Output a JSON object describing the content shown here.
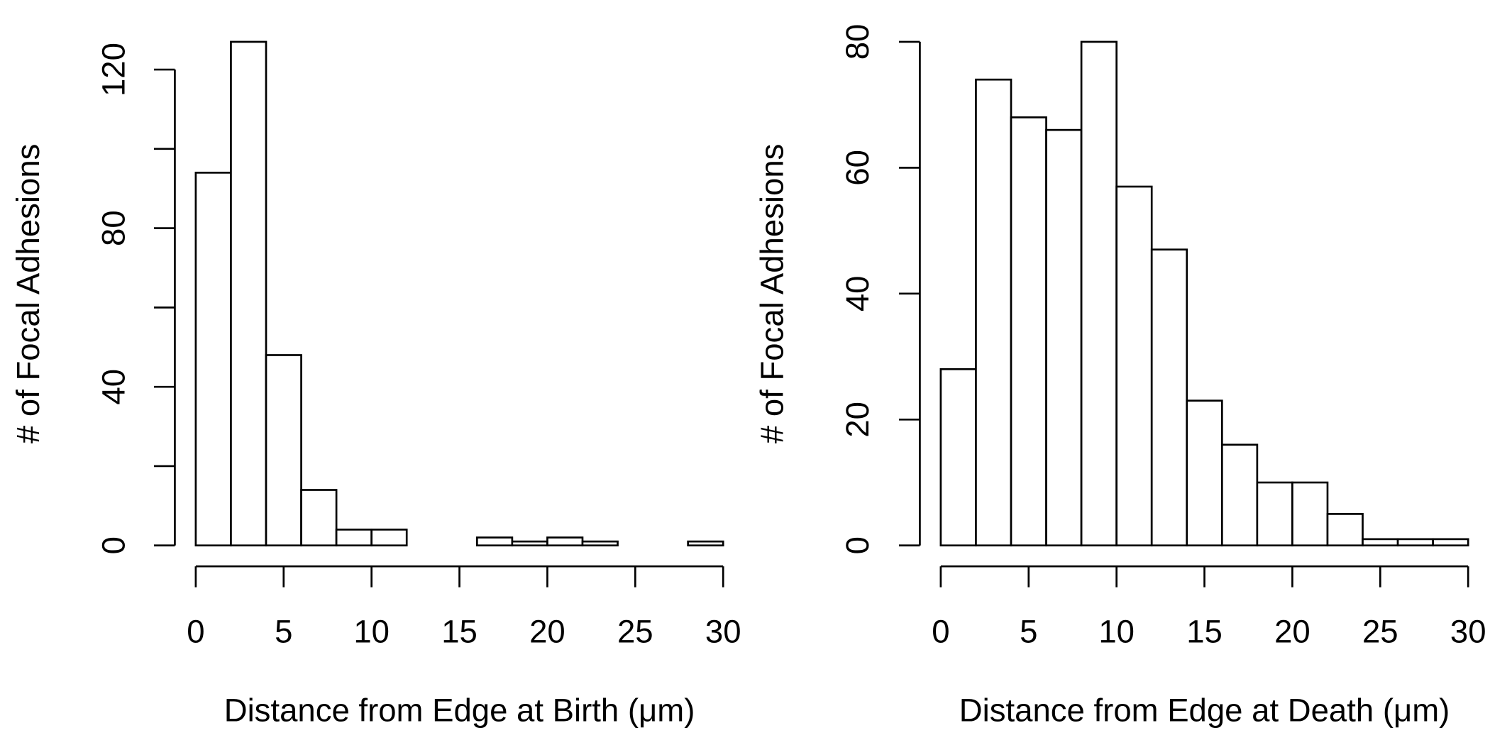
{
  "chart_data": [
    {
      "type": "histogram",
      "xlabel": "Distance from Edge at Birth (μm)",
      "ylabel": "# of Focal Adhesions",
      "bins": [
        0,
        2,
        4,
        6,
        8,
        10,
        12,
        14,
        16,
        18,
        20,
        22,
        24,
        26,
        28,
        30
      ],
      "values": [
        94,
        127,
        48,
        14,
        4,
        4,
        0,
        0,
        2,
        1,
        2,
        1,
        0,
        0,
        1
      ],
      "color": "#ffffff",
      "xlim": [
        0,
        30
      ],
      "xticks": [
        0,
        5,
        10,
        15,
        20,
        25,
        30
      ],
      "ylim": [
        0,
        127
      ],
      "yticks": [
        0,
        20,
        40,
        60,
        80,
        100,
        120
      ]
    },
    {
      "type": "histogram",
      "xlabel": "Distance from Edge at Death (μm)",
      "ylabel": "# of Focal Adhesions",
      "bins": [
        0,
        2,
        4,
        6,
        8,
        10,
        12,
        14,
        16,
        18,
        20,
        22,
        24,
        26,
        28,
        30
      ],
      "values": [
        28,
        74,
        68,
        66,
        80,
        57,
        47,
        23,
        16,
        10,
        10,
        5,
        1,
        1,
        1
      ],
      "color": "#ffffff",
      "xlim": [
        0,
        30
      ],
      "xticks": [
        0,
        5,
        10,
        15,
        20,
        25,
        30
      ],
      "ylim": [
        0,
        80
      ],
      "yticks": [
        0,
        20,
        40,
        60,
        80
      ]
    }
  ]
}
